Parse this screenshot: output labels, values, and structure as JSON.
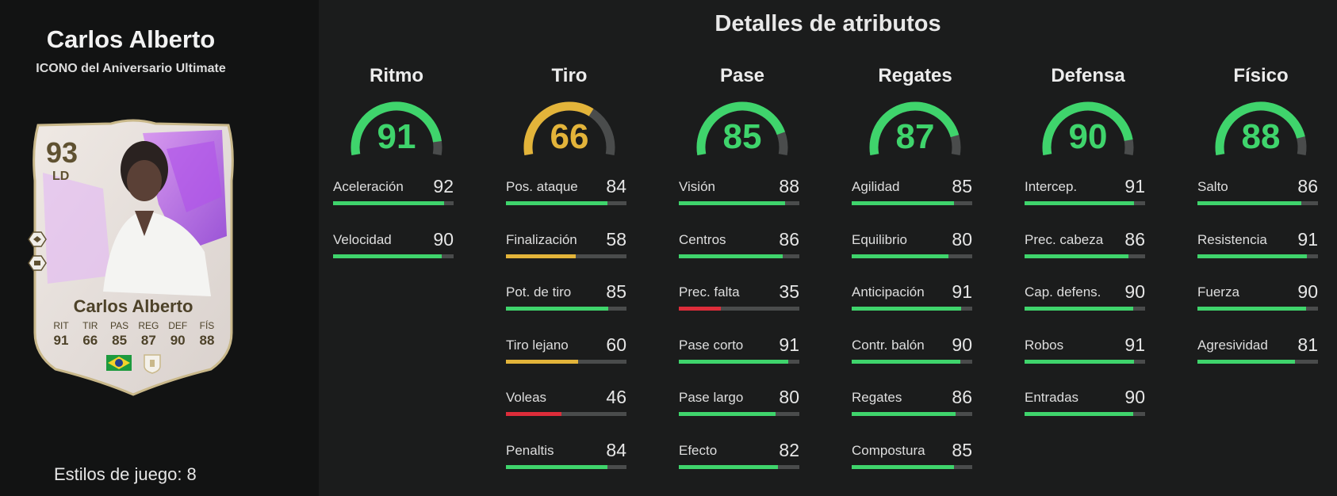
{
  "player": {
    "name": "Carlos Alberto",
    "subtitle": "ICONO del Aniversario Ultimate",
    "playstyles_label": "Estilos de juego: 8"
  },
  "card": {
    "rating": "93",
    "position": "LD",
    "name": "Carlos Alberto",
    "stats": [
      {
        "label": "RIT",
        "value": "91"
      },
      {
        "label": "TIR",
        "value": "66"
      },
      {
        "label": "PAS",
        "value": "85"
      },
      {
        "label": "REG",
        "value": "87"
      },
      {
        "label": "DEF",
        "value": "90"
      },
      {
        "label": "FÍS",
        "value": "88"
      }
    ],
    "nation_icon": "brazil-flag-icon",
    "club_icon": "icon-badge-icon"
  },
  "panel": {
    "title": "Detalles de atributos"
  },
  "colors": {
    "green": "#3fd46c",
    "yellow": "#e3b43a",
    "red": "#dd2d3a",
    "track": "#4a4c4c"
  },
  "categories": [
    {
      "name": "Ritmo",
      "value": 91,
      "color": "green",
      "attributes": [
        {
          "label": "Aceleración",
          "value": 92,
          "color": "green"
        },
        {
          "label": "Velocidad",
          "value": 90,
          "color": "green"
        }
      ]
    },
    {
      "name": "Tiro",
      "value": 66,
      "color": "yellow",
      "attributes": [
        {
          "label": "Pos. ataque",
          "value": 84,
          "color": "green"
        },
        {
          "label": "Finalización",
          "value": 58,
          "color": "yellow"
        },
        {
          "label": "Pot. de tiro",
          "value": 85,
          "color": "green"
        },
        {
          "label": "Tiro lejano",
          "value": 60,
          "color": "yellow"
        },
        {
          "label": "Voleas",
          "value": 46,
          "color": "red"
        },
        {
          "label": "Penaltis",
          "value": 84,
          "color": "green"
        }
      ]
    },
    {
      "name": "Pase",
      "value": 85,
      "color": "green",
      "attributes": [
        {
          "label": "Visión",
          "value": 88,
          "color": "green"
        },
        {
          "label": "Centros",
          "value": 86,
          "color": "green"
        },
        {
          "label": "Prec. falta",
          "value": 35,
          "color": "red"
        },
        {
          "label": "Pase corto",
          "value": 91,
          "color": "green"
        },
        {
          "label": "Pase largo",
          "value": 80,
          "color": "green"
        },
        {
          "label": "Efecto",
          "value": 82,
          "color": "green"
        }
      ]
    },
    {
      "name": "Regates",
      "value": 87,
      "color": "green",
      "attributes": [
        {
          "label": "Agilidad",
          "value": 85,
          "color": "green"
        },
        {
          "label": "Equilibrio",
          "value": 80,
          "color": "green"
        },
        {
          "label": "Anticipación",
          "value": 91,
          "color": "green"
        },
        {
          "label": "Contr. balón",
          "value": 90,
          "color": "green"
        },
        {
          "label": "Regates",
          "value": 86,
          "color": "green"
        },
        {
          "label": "Compostura",
          "value": 85,
          "color": "green"
        }
      ]
    },
    {
      "name": "Defensa",
      "value": 90,
      "color": "green",
      "attributes": [
        {
          "label": "Intercep.",
          "value": 91,
          "color": "green"
        },
        {
          "label": "Prec. cabeza",
          "value": 86,
          "color": "green"
        },
        {
          "label": "Cap. defens.",
          "value": 90,
          "color": "green"
        },
        {
          "label": "Robos",
          "value": 91,
          "color": "green"
        },
        {
          "label": "Entradas",
          "value": 90,
          "color": "green"
        }
      ]
    },
    {
      "name": "Físico",
      "value": 88,
      "color": "green",
      "attributes": [
        {
          "label": "Salto",
          "value": 86,
          "color": "green"
        },
        {
          "label": "Resistencia",
          "value": 91,
          "color": "green"
        },
        {
          "label": "Fuerza",
          "value": 90,
          "color": "green"
        },
        {
          "label": "Agresividad",
          "value": 81,
          "color": "green"
        }
      ]
    }
  ]
}
